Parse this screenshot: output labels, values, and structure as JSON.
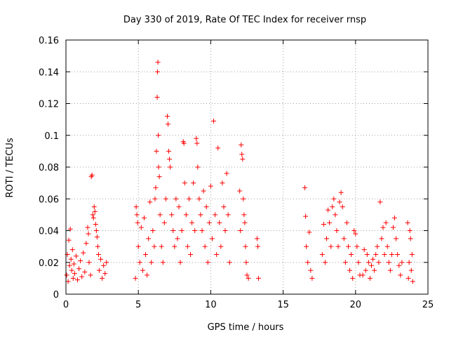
{
  "chart_data": {
    "type": "scatter",
    "title": "Day 330 of 2019, Rate Of TEC Index for receiver rnsp",
    "xlabel": "GPS time / hours",
    "ylabel": "ROTI / TECUs",
    "xlim": [
      0,
      25
    ],
    "ylim": [
      0,
      0.16
    ],
    "x_ticks": [
      0,
      5,
      10,
      15,
      20,
      25
    ],
    "x_tick_labels": [
      "0",
      "5",
      "10",
      "15",
      "20",
      "25"
    ],
    "y_ticks": [
      0,
      0.02,
      0.04,
      0.06,
      0.08,
      0.1,
      0.12,
      0.14,
      0.16
    ],
    "y_tick_labels": [
      "0",
      "0.02",
      "0.04",
      "0.06",
      "0.08",
      "0.1",
      "0.12",
      "0.14",
      "0.16"
    ],
    "grid": true,
    "marker": "+",
    "marker_color": "#ff0000",
    "series": [
      {
        "name": "ROTI",
        "points": [
          [
            0.05,
            0.012
          ],
          [
            0.1,
            0.025
          ],
          [
            0.15,
            0.008
          ],
          [
            0.2,
            0.034
          ],
          [
            0.25,
            0.018
          ],
          [
            0.3,
            0.041
          ],
          [
            0.35,
            0.022
          ],
          [
            0.4,
            0.015
          ],
          [
            0.45,
            0.028
          ],
          [
            0.5,
            0.01
          ],
          [
            0.55,
            0.019
          ],
          [
            0.6,
            0.013
          ],
          [
            0.7,
            0.024
          ],
          [
            0.8,
            0.009
          ],
          [
            0.9,
            0.016
          ],
          [
            1.0,
            0.021
          ],
          [
            1.1,
            0.011
          ],
          [
            1.2,
            0.026
          ],
          [
            1.3,
            0.014
          ],
          [
            1.4,
            0.032
          ],
          [
            1.5,
            0.042
          ],
          [
            1.55,
            0.038
          ],
          [
            1.6,
            0.02
          ],
          [
            1.7,
            0.012
          ],
          [
            1.75,
            0.074
          ],
          [
            1.8,
            0.075
          ],
          [
            1.85,
            0.05
          ],
          [
            1.9,
            0.048
          ],
          [
            1.95,
            0.055
          ],
          [
            2.0,
            0.052
          ],
          [
            2.05,
            0.044
          ],
          [
            2.1,
            0.04
          ],
          [
            2.15,
            0.036
          ],
          [
            2.2,
            0.03
          ],
          [
            2.25,
            0.025
          ],
          [
            2.3,
            0.015
          ],
          [
            2.4,
            0.022
          ],
          [
            2.5,
            0.01
          ],
          [
            2.6,
            0.018
          ],
          [
            2.7,
            0.013
          ],
          [
            2.8,
            0.02
          ],
          [
            4.8,
            0.01
          ],
          [
            4.85,
            0.055
          ],
          [
            4.9,
            0.05
          ],
          [
            4.95,
            0.045
          ],
          [
            5.0,
            0.03
          ],
          [
            5.1,
            0.02
          ],
          [
            5.2,
            0.042
          ],
          [
            5.3,
            0.015
          ],
          [
            5.4,
            0.048
          ],
          [
            5.5,
            0.025
          ],
          [
            5.6,
            0.012
          ],
          [
            5.7,
            0.035
          ],
          [
            5.8,
            0.058
          ],
          [
            5.9,
            0.02
          ],
          [
            6.0,
            0.04
          ],
          [
            6.1,
            0.03
          ],
          [
            6.15,
            0.06
          ],
          [
            6.2,
            0.067
          ],
          [
            6.25,
            0.09
          ],
          [
            6.3,
            0.124
          ],
          [
            6.32,
            0.14
          ],
          [
            6.35,
            0.146
          ],
          [
            6.38,
            0.1
          ],
          [
            6.4,
            0.08
          ],
          [
            6.45,
            0.074
          ],
          [
            6.5,
            0.05
          ],
          [
            6.6,
            0.03
          ],
          [
            6.7,
            0.02
          ],
          [
            6.8,
            0.045
          ],
          [
            6.9,
            0.06
          ],
          [
            7.0,
            0.112
          ],
          [
            7.05,
            0.107
          ],
          [
            7.1,
            0.09
          ],
          [
            7.15,
            0.085
          ],
          [
            7.2,
            0.08
          ],
          [
            7.3,
            0.05
          ],
          [
            7.4,
            0.04
          ],
          [
            7.5,
            0.03
          ],
          [
            7.6,
            0.06
          ],
          [
            7.7,
            0.035
          ],
          [
            7.8,
            0.055
          ],
          [
            7.9,
            0.02
          ],
          [
            8.0,
            0.04
          ],
          [
            8.1,
            0.096
          ],
          [
            8.15,
            0.095
          ],
          [
            8.2,
            0.07
          ],
          [
            8.3,
            0.05
          ],
          [
            8.4,
            0.03
          ],
          [
            8.5,
            0.06
          ],
          [
            8.6,
            0.025
          ],
          [
            8.7,
            0.045
          ],
          [
            8.8,
            0.07
          ],
          [
            8.9,
            0.04
          ],
          [
            9.0,
            0.098
          ],
          [
            9.05,
            0.095
          ],
          [
            9.1,
            0.08
          ],
          [
            9.2,
            0.06
          ],
          [
            9.3,
            0.05
          ],
          [
            9.4,
            0.04
          ],
          [
            9.5,
            0.065
          ],
          [
            9.6,
            0.03
          ],
          [
            9.7,
            0.055
          ],
          [
            9.8,
            0.02
          ],
          [
            9.9,
            0.045
          ],
          [
            10.0,
            0.068
          ],
          [
            10.1,
            0.035
          ],
          [
            10.2,
            0.109
          ],
          [
            10.3,
            0.05
          ],
          [
            10.4,
            0.025
          ],
          [
            10.5,
            0.092
          ],
          [
            10.6,
            0.045
          ],
          [
            10.7,
            0.03
          ],
          [
            10.8,
            0.07
          ],
          [
            10.9,
            0.055
          ],
          [
            11.0,
            0.04
          ],
          [
            11.1,
            0.076
          ],
          [
            11.2,
            0.05
          ],
          [
            11.3,
            0.02
          ],
          [
            12.0,
            0.065
          ],
          [
            12.05,
            0.04
          ],
          [
            12.1,
            0.094
          ],
          [
            12.15,
            0.088
          ],
          [
            12.2,
            0.085
          ],
          [
            12.25,
            0.06
          ],
          [
            12.3,
            0.05
          ],
          [
            12.35,
            0.045
          ],
          [
            12.4,
            0.03
          ],
          [
            12.45,
            0.02
          ],
          [
            12.5,
            0.012
          ],
          [
            12.6,
            0.01
          ],
          [
            13.2,
            0.035
          ],
          [
            13.25,
            0.03
          ],
          [
            13.3,
            0.01
          ],
          [
            16.5,
            0.067
          ],
          [
            16.55,
            0.049
          ],
          [
            16.6,
            0.03
          ],
          [
            16.7,
            0.02
          ],
          [
            16.8,
            0.039
          ],
          [
            16.9,
            0.015
          ],
          [
            17.0,
            0.01
          ],
          [
            17.7,
            0.025
          ],
          [
            17.8,
            0.044
          ],
          [
            17.9,
            0.02
          ],
          [
            18.0,
            0.035
          ],
          [
            18.1,
            0.053
          ],
          [
            18.2,
            0.045
          ],
          [
            18.3,
            0.03
          ],
          [
            18.4,
            0.055
          ],
          [
            18.5,
            0.06
          ],
          [
            18.6,
            0.05
          ],
          [
            18.7,
            0.04
          ],
          [
            18.8,
            0.03
          ],
          [
            18.9,
            0.058
          ],
          [
            19.0,
            0.064
          ],
          [
            19.1,
            0.055
          ],
          [
            19.2,
            0.035
          ],
          [
            19.3,
            0.02
          ],
          [
            19.4,
            0.045
          ],
          [
            19.5,
            0.03
          ],
          [
            19.6,
            0.015
          ],
          [
            19.7,
            0.025
          ],
          [
            19.8,
            0.01
          ],
          [
            19.9,
            0.04
          ],
          [
            20.0,
            0.038
          ],
          [
            20.1,
            0.03
          ],
          [
            20.2,
            0.02
          ],
          [
            20.3,
            0.012
          ],
          [
            20.5,
            0.012
          ],
          [
            20.6,
            0.028
          ],
          [
            20.7,
            0.015
          ],
          [
            20.8,
            0.025
          ],
          [
            20.9,
            0.02
          ],
          [
            21.0,
            0.01
          ],
          [
            21.1,
            0.018
          ],
          [
            21.2,
            0.022
          ],
          [
            21.3,
            0.015
          ],
          [
            21.4,
            0.025
          ],
          [
            21.5,
            0.03
          ],
          [
            21.6,
            0.02
          ],
          [
            21.7,
            0.058
          ],
          [
            21.8,
            0.035
          ],
          [
            21.9,
            0.042
          ],
          [
            22.0,
            0.025
          ],
          [
            22.1,
            0.045
          ],
          [
            22.2,
            0.03
          ],
          [
            22.3,
            0.02
          ],
          [
            22.4,
            0.015
          ],
          [
            22.5,
            0.025
          ],
          [
            22.6,
            0.042
          ],
          [
            22.7,
            0.048
          ],
          [
            22.8,
            0.035
          ],
          [
            22.9,
            0.025
          ],
          [
            23.0,
            0.018
          ],
          [
            23.1,
            0.012
          ],
          [
            23.2,
            0.02
          ],
          [
            23.6,
            0.045
          ],
          [
            23.65,
            0.01
          ],
          [
            23.7,
            0.02
          ],
          [
            23.75,
            0.04
          ],
          [
            23.8,
            0.035
          ],
          [
            23.85,
            0.015
          ],
          [
            23.9,
            0.025
          ],
          [
            23.95,
            0.008
          ]
        ]
      }
    ]
  }
}
